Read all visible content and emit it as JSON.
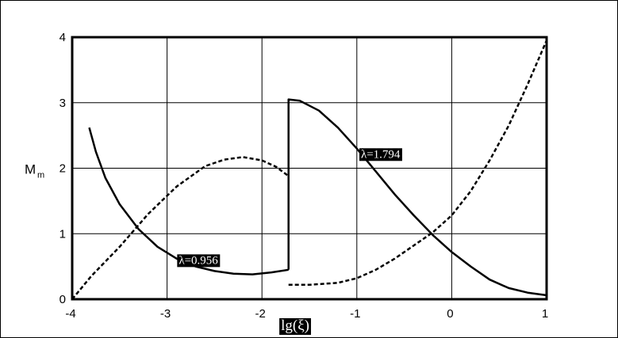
{
  "chart_data": {
    "type": "line",
    "xlabel": "lg(ξ)",
    "ylabel": {
      "main": "M",
      "sub": "m"
    },
    "xlim": [
      -4,
      1
    ],
    "ylim": [
      0,
      4
    ],
    "xticks": [
      "-4",
      "-3",
      "-2",
      "-1",
      "0",
      "1"
    ],
    "yticks": [
      "0",
      "1",
      "2",
      "3",
      "4"
    ],
    "grid": true,
    "colors": {
      "line": "#000000",
      "grid": "#000000",
      "label_bg": "#000000",
      "label_text": "#ffffff"
    },
    "annotations": [
      {
        "text": "λ=0.956",
        "x": -2.67,
        "y": 0.6
      },
      {
        "text": "λ=1.794",
        "x": -0.75,
        "y": 2.22
      }
    ],
    "series": [
      {
        "style": "solid",
        "segment": "λ=0.956 branch",
        "x": [
          -3.82,
          -3.75,
          -3.65,
          -3.5,
          -3.3,
          -3.1,
          -2.9,
          -2.7,
          -2.5,
          -2.3,
          -2.1,
          -1.9,
          -1.72
        ],
        "y": [
          2.62,
          2.25,
          1.85,
          1.45,
          1.07,
          0.8,
          0.62,
          0.5,
          0.43,
          0.39,
          0.38,
          0.41,
          0.45
        ]
      },
      {
        "style": "dashed",
        "segment": "λ=0.956 branch",
        "x": [
          -4.0,
          -3.8,
          -3.5,
          -3.2,
          -2.9,
          -2.6,
          -2.4,
          -2.2,
          -2.0,
          -1.85,
          -1.72
        ],
        "y": [
          0.0,
          0.35,
          0.8,
          1.3,
          1.72,
          2.03,
          2.13,
          2.17,
          2.12,
          2.02,
          1.88
        ]
      },
      {
        "style": "solid",
        "segment": "λ=1.794 branch",
        "x": [
          -1.72,
          -1.72,
          -1.6,
          -1.4,
          -1.2,
          -1.0,
          -0.8,
          -0.6,
          -0.4,
          -0.2,
          0.0,
          0.2,
          0.4,
          0.6,
          0.8,
          1.0
        ],
        "y": [
          0.45,
          3.05,
          3.03,
          2.88,
          2.62,
          2.3,
          1.95,
          1.6,
          1.28,
          0.98,
          0.72,
          0.5,
          0.3,
          0.17,
          0.1,
          0.06
        ]
      },
      {
        "style": "dashed",
        "segment": "λ=1.794 branch",
        "x": [
          -1.72,
          -1.5,
          -1.2,
          -1.0,
          -0.8,
          -0.6,
          -0.4,
          -0.2,
          0.0,
          0.2,
          0.4,
          0.6,
          0.8,
          1.0
        ],
        "y": [
          0.22,
          0.22,
          0.25,
          0.32,
          0.45,
          0.62,
          0.82,
          1.02,
          1.28,
          1.65,
          2.12,
          2.65,
          3.28,
          3.95
        ]
      }
    ]
  }
}
